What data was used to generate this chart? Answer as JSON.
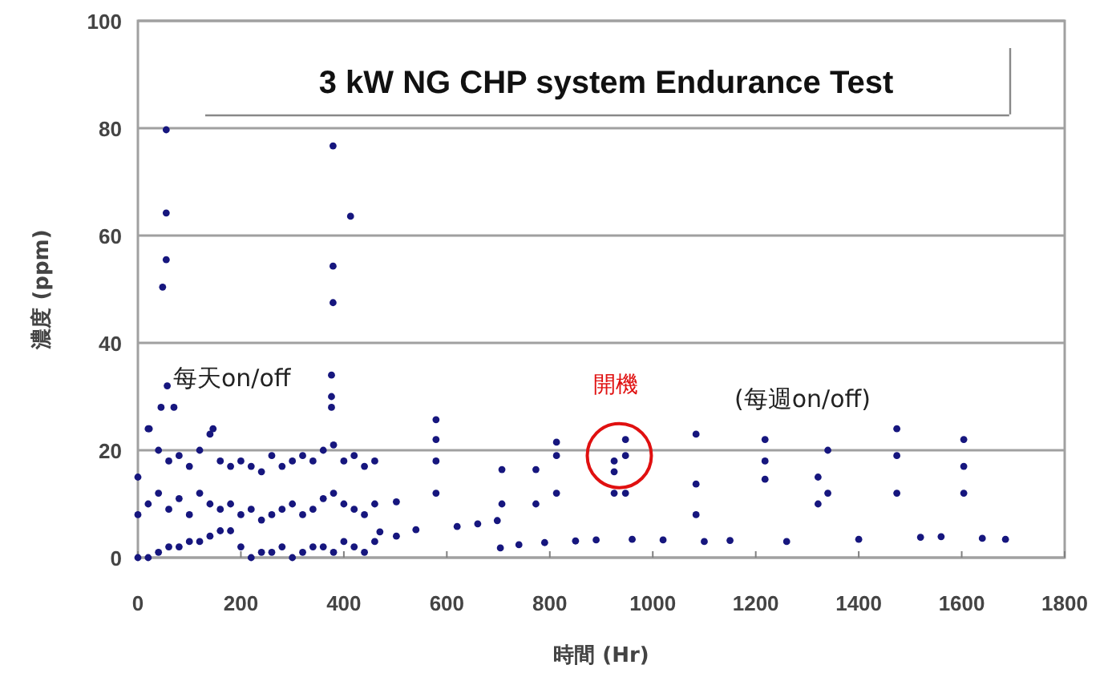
{
  "chart_data": {
    "type": "scatter",
    "title": "3 kW NG CHP system Endurance Test",
    "xlabel": "時間 (Hr)",
    "ylabel": "濃度 (ppm)",
    "xlim": [
      0,
      1800
    ],
    "ylim": [
      0,
      100
    ],
    "xticks": [
      0,
      200,
      400,
      600,
      800,
      1000,
      1200,
      1400,
      1600,
      1800
    ],
    "yticks": [
      0,
      20,
      40,
      60,
      80,
      100
    ],
    "grid": "y",
    "marker": "circle",
    "series": [
      {
        "color": "#16167e",
        "x": [
          55,
          55,
          55,
          48,
          379,
          379,
          379,
          413,
          22,
          57,
          45,
          70,
          146,
          376,
          376,
          376,
          0,
          0,
          0,
          20,
          20,
          20,
          40,
          40,
          40,
          60,
          60,
          60,
          80,
          80,
          80,
          100,
          100,
          100,
          120,
          120,
          120,
          140,
          140,
          140,
          160,
          160,
          160,
          180,
          180,
          180,
          200,
          200,
          200,
          220,
          220,
          220,
          240,
          240,
          240,
          260,
          260,
          260,
          280,
          280,
          280,
          300,
          300,
          300,
          320,
          320,
          320,
          340,
          340,
          340,
          360,
          360,
          360,
          380,
          380,
          380,
          400,
          400,
          400,
          420,
          420,
          420,
          440,
          440,
          440,
          460,
          460,
          460,
          470,
          502,
          502,
          540,
          579,
          579,
          579,
          579,
          620,
          660,
          698,
          704,
          707,
          707,
          740,
          773,
          773,
          790,
          813,
          813,
          813,
          850,
          890,
          925,
          925,
          925,
          947,
          947,
          947,
          960,
          1020,
          1084,
          1084,
          1084,
          1100,
          1150,
          1218,
          1218,
          1218,
          1260,
          1321,
          1321,
          1340,
          1340,
          1400,
          1474,
          1474,
          1474,
          1520,
          1560,
          1604,
          1604,
          1604,
          1640,
          1685
        ],
        "values": [
          79.7,
          64.2,
          55.5,
          50.4,
          76.7,
          54.3,
          47.5,
          63.6,
          24,
          32,
          28,
          28,
          24,
          34,
          30,
          28,
          15,
          8,
          0,
          24,
          10,
          0,
          20,
          12,
          1,
          18,
          9,
          2,
          19,
          11,
          2,
          17,
          8,
          3,
          20,
          12,
          3,
          23,
          10,
          4,
          18,
          9,
          5,
          17,
          10,
          5,
          18,
          8,
          2,
          17,
          9,
          0,
          16,
          7,
          1,
          19,
          8,
          1,
          17,
          9,
          2,
          18,
          10,
          0,
          19,
          8,
          1,
          18,
          9,
          2,
          20,
          11,
          2,
          21,
          12,
          1,
          18,
          10,
          3,
          19,
          9,
          2,
          17,
          8,
          1,
          18,
          10,
          3,
          4.8,
          10.4,
          4,
          5.2,
          25.7,
          22,
          18,
          12,
          5.8,
          6.3,
          6.9,
          1.8,
          16.4,
          10,
          2.4,
          16.4,
          10,
          2.8,
          21.5,
          19,
          12,
          3.1,
          3.3,
          18,
          16,
          12,
          22,
          19,
          12,
          3.4,
          3.3,
          23,
          13.7,
          8,
          3,
          3.2,
          22,
          18,
          14.6,
          3,
          15,
          10,
          20,
          12,
          3.4,
          24,
          19,
          12,
          3.8,
          3.9,
          22,
          17,
          12,
          3.6,
          3.4
        ]
      }
    ],
    "annotations": [
      {
        "text": "開機",
        "x": 935,
        "y": 19
      },
      "每天on/off",
      "(每週on/off)"
    ]
  }
}
